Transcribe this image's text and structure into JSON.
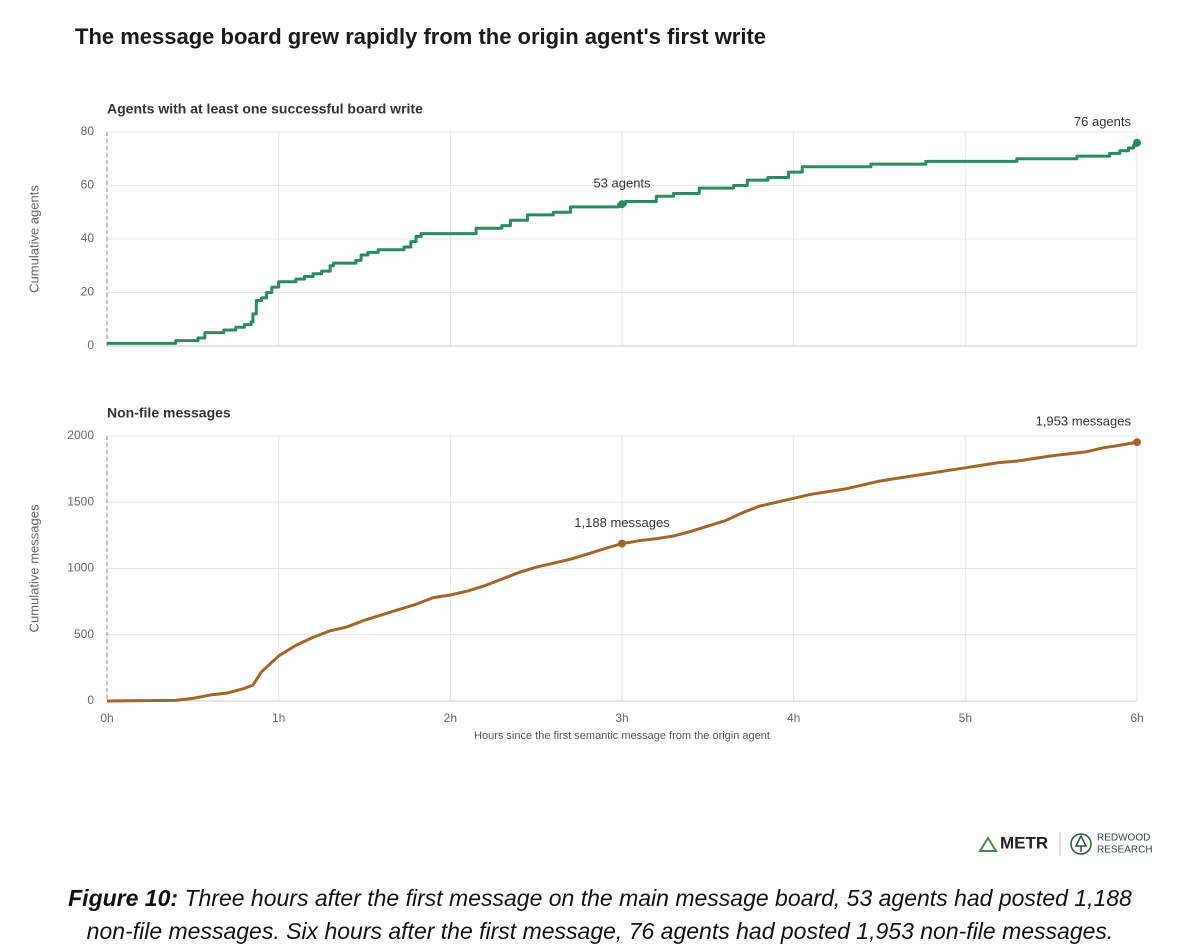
{
  "figure_title": "The message board grew rapidly from the origin agent's first write",
  "chart_data": [
    {
      "type": "step",
      "title": "Agents with at least one successful board write",
      "ylabel": "Cumulative agents",
      "color": "#2a8a62",
      "x": [
        0,
        0.4,
        0.53,
        0.57,
        0.68,
        0.75,
        0.8,
        0.84,
        0.85,
        0.87,
        0.9,
        0.93,
        0.96,
        1.0,
        1.1,
        1.15,
        1.2,
        1.25,
        1.3,
        1.32,
        1.45,
        1.48,
        1.52,
        1.58,
        1.73,
        1.77,
        1.8,
        1.83,
        2.15,
        2.3,
        2.35,
        2.45,
        2.6,
        2.7,
        2.98,
        3.02,
        3.2,
        3.3,
        3.45,
        3.65,
        3.73,
        3.85,
        3.97,
        4.05,
        4.45,
        4.77,
        5.3,
        5.65,
        5.84,
        5.9,
        5.95,
        5.98,
        6.0
      ],
      "values": [
        1,
        2,
        3,
        5,
        6,
        7,
        8,
        9,
        12,
        17,
        18,
        20,
        22,
        24,
        25,
        26,
        27,
        28,
        30,
        31,
        32,
        34,
        35,
        36,
        37,
        39,
        41,
        42,
        44,
        45,
        47,
        49,
        50,
        52,
        53,
        54,
        56,
        57,
        59,
        60,
        62,
        63,
        65,
        67,
        68,
        69,
        70,
        71,
        72,
        73,
        74,
        75,
        76
      ],
      "xlim": [
        0,
        6
      ],
      "ylim": [
        0,
        80
      ],
      "yticks": [
        0,
        20,
        40,
        60,
        80
      ],
      "grid": true,
      "annotations": [
        {
          "text": "53 agents",
          "x": 3,
          "y": 53
        },
        {
          "text": "76 agents",
          "x": 6,
          "y": 76
        }
      ]
    },
    {
      "type": "line",
      "title": "Non-file messages",
      "ylabel": "Cumulative messages",
      "xlabel": "Hours since the first semantic message from the origin agent",
      "color": "#a0662a",
      "x": [
        0,
        0.4,
        0.5,
        0.6,
        0.7,
        0.8,
        0.85,
        0.9,
        1.0,
        1.1,
        1.2,
        1.3,
        1.4,
        1.5,
        1.6,
        1.7,
        1.8,
        1.9,
        2.0,
        2.1,
        2.2,
        2.3,
        2.4,
        2.5,
        2.6,
        2.7,
        2.8,
        2.9,
        3.0,
        3.1,
        3.2,
        3.3,
        3.4,
        3.5,
        3.6,
        3.7,
        3.8,
        3.9,
        4.0,
        4.1,
        4.2,
        4.3,
        4.4,
        4.5,
        4.6,
        4.7,
        4.8,
        4.9,
        5.0,
        5.1,
        5.2,
        5.3,
        5.4,
        5.5,
        5.6,
        5.7,
        5.8,
        5.9,
        6.0
      ],
      "values": [
        0,
        5,
        20,
        45,
        60,
        95,
        120,
        220,
        340,
        420,
        480,
        530,
        560,
        610,
        650,
        690,
        730,
        780,
        800,
        830,
        870,
        920,
        970,
        1010,
        1040,
        1070,
        1110,
        1150,
        1188,
        1210,
        1225,
        1245,
        1280,
        1320,
        1360,
        1420,
        1470,
        1500,
        1530,
        1560,
        1580,
        1600,
        1630,
        1660,
        1680,
        1700,
        1720,
        1740,
        1760,
        1780,
        1800,
        1810,
        1830,
        1850,
        1865,
        1880,
        1910,
        1930,
        1953
      ],
      "xlim": [
        0,
        6
      ],
      "ylim": [
        0,
        2000
      ],
      "yticks": [
        0,
        500,
        1000,
        1500,
        2000
      ],
      "grid": true,
      "xticks": [
        {
          "value": 0,
          "label": "0h"
        },
        {
          "value": 1,
          "label": "1h"
        },
        {
          "value": 2,
          "label": "2h"
        },
        {
          "value": 3,
          "label": "3h"
        },
        {
          "value": 4,
          "label": "4h"
        },
        {
          "value": 5,
          "label": "5h"
        },
        {
          "value": 6,
          "label": "6h"
        }
      ],
      "annotations": [
        {
          "text": "1,188 messages",
          "x": 3,
          "y": 1188
        },
        {
          "text": "1,953 messages",
          "x": 6,
          "y": 1953
        }
      ]
    }
  ],
  "logos": [
    "METR",
    "REDWOOD",
    "RESEARCH"
  ],
  "caption": {
    "label": "Figure 10:",
    "lines": [
      "Three hours after the first message on the main message board, 53 agents had posted 1,188",
      "non-file messages. Six hours after the first message, 76 agents had posted 1,953 non-file messages."
    ]
  }
}
